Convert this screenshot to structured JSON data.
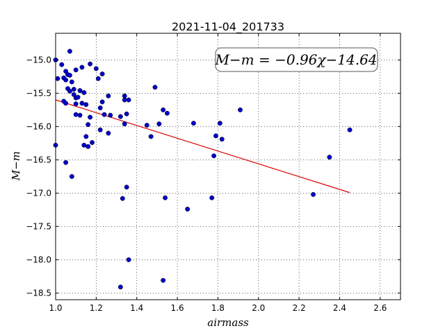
{
  "chart_data": {
    "type": "scatter",
    "title": "2021-11-04_201733",
    "xlabel": "airmass",
    "ylabel": "M−m",
    "xlim": [
      1.0,
      2.7
    ],
    "ylim": [
      -18.6,
      -14.6
    ],
    "xticks": [
      1.0,
      1.2,
      1.4,
      1.6,
      1.8,
      2.0,
      2.2,
      2.4,
      2.6
    ],
    "xtick_labels": [
      "1.0",
      "1.2",
      "1.4",
      "1.6",
      "1.8",
      "2.0",
      "2.2",
      "2.4",
      "2.6"
    ],
    "yticks": [
      -15.0,
      -15.5,
      -16.0,
      -16.5,
      -17.0,
      -17.5,
      -18.0,
      -18.5
    ],
    "ytick_labels": [
      "−15.0",
      "−15.5",
      "−16.0",
      "−16.5",
      "−17.0",
      "−17.5",
      "−18.0",
      "−18.5"
    ],
    "grid": true,
    "annotation": "M−m = −0.96χ−14.64",
    "colors": {
      "points": "#0000cc",
      "fit_line": "#dd0000"
    },
    "fit": {
      "slope": -0.96,
      "intercept": -14.64,
      "x_range": [
        1.0,
        2.45
      ]
    },
    "points": [
      [
        1.0,
        -15.0
      ],
      [
        1.0,
        -16.28
      ],
      [
        1.01,
        -15.28
      ],
      [
        1.03,
        -15.07
      ],
      [
        1.04,
        -15.27
      ],
      [
        1.04,
        -15.62
      ],
      [
        1.05,
        -15.17
      ],
      [
        1.05,
        -16.54
      ],
      [
        1.05,
        -15.3
      ],
      [
        1.05,
        -15.65
      ],
      [
        1.06,
        -15.43
      ],
      [
        1.06,
        -15.22
      ],
      [
        1.07,
        -14.87
      ],
      [
        1.07,
        -15.23
      ],
      [
        1.07,
        -15.47
      ],
      [
        1.08,
        -15.33
      ],
      [
        1.08,
        -16.75
      ],
      [
        1.09,
        -15.44
      ],
      [
        1.09,
        -15.52
      ],
      [
        1.1,
        -15.15
      ],
      [
        1.1,
        -15.57
      ],
      [
        1.1,
        -15.66
      ],
      [
        1.1,
        -15.82
      ],
      [
        1.11,
        -15.56
      ],
      [
        1.12,
        -15.83
      ],
      [
        1.12,
        -15.46
      ],
      [
        1.13,
        -15.11
      ],
      [
        1.13,
        -15.65
      ],
      [
        1.14,
        -15.49
      ],
      [
        1.14,
        -16.28
      ],
      [
        1.15,
        -15.67
      ],
      [
        1.15,
        -16.15
      ],
      [
        1.16,
        -15.97
      ],
      [
        1.16,
        -16.3
      ],
      [
        1.17,
        -15.06
      ],
      [
        1.17,
        -15.86
      ],
      [
        1.18,
        -16.24
      ],
      [
        1.2,
        -15.13
      ],
      [
        1.21,
        -15.28
      ],
      [
        1.22,
        -15.72
      ],
      [
        1.22,
        -16.05
      ],
      [
        1.23,
        -15.63
      ],
      [
        1.23,
        -15.21
      ],
      [
        1.24,
        -15.82
      ],
      [
        1.26,
        -15.54
      ],
      [
        1.26,
        -16.1
      ],
      [
        1.27,
        -15.83
      ],
      [
        1.32,
        -15.85
      ],
      [
        1.32,
        -18.41
      ],
      [
        1.33,
        -17.08
      ],
      [
        1.34,
        -15.54
      ],
      [
        1.34,
        -15.6
      ],
      [
        1.34,
        -15.96
      ],
      [
        1.35,
        -16.91
      ],
      [
        1.35,
        -15.81
      ],
      [
        1.36,
        -15.6
      ],
      [
        1.36,
        -18.0
      ],
      [
        1.45,
        -15.98
      ],
      [
        1.47,
        -16.15
      ],
      [
        1.49,
        -15.41
      ],
      [
        1.51,
        -15.96
      ],
      [
        1.53,
        -15.75
      ],
      [
        1.53,
        -18.31
      ],
      [
        1.54,
        -17.07
      ],
      [
        1.55,
        -15.8
      ],
      [
        1.65,
        -17.24
      ],
      [
        1.68,
        -15.95
      ],
      [
        1.77,
        -17.07
      ],
      [
        1.78,
        -16.44
      ],
      [
        1.79,
        -16.14
      ],
      [
        1.81,
        -15.95
      ],
      [
        1.82,
        -16.19
      ],
      [
        1.91,
        -15.75
      ],
      [
        2.27,
        -17.02
      ],
      [
        2.35,
        -16.46
      ],
      [
        2.45,
        -16.05
      ]
    ]
  }
}
